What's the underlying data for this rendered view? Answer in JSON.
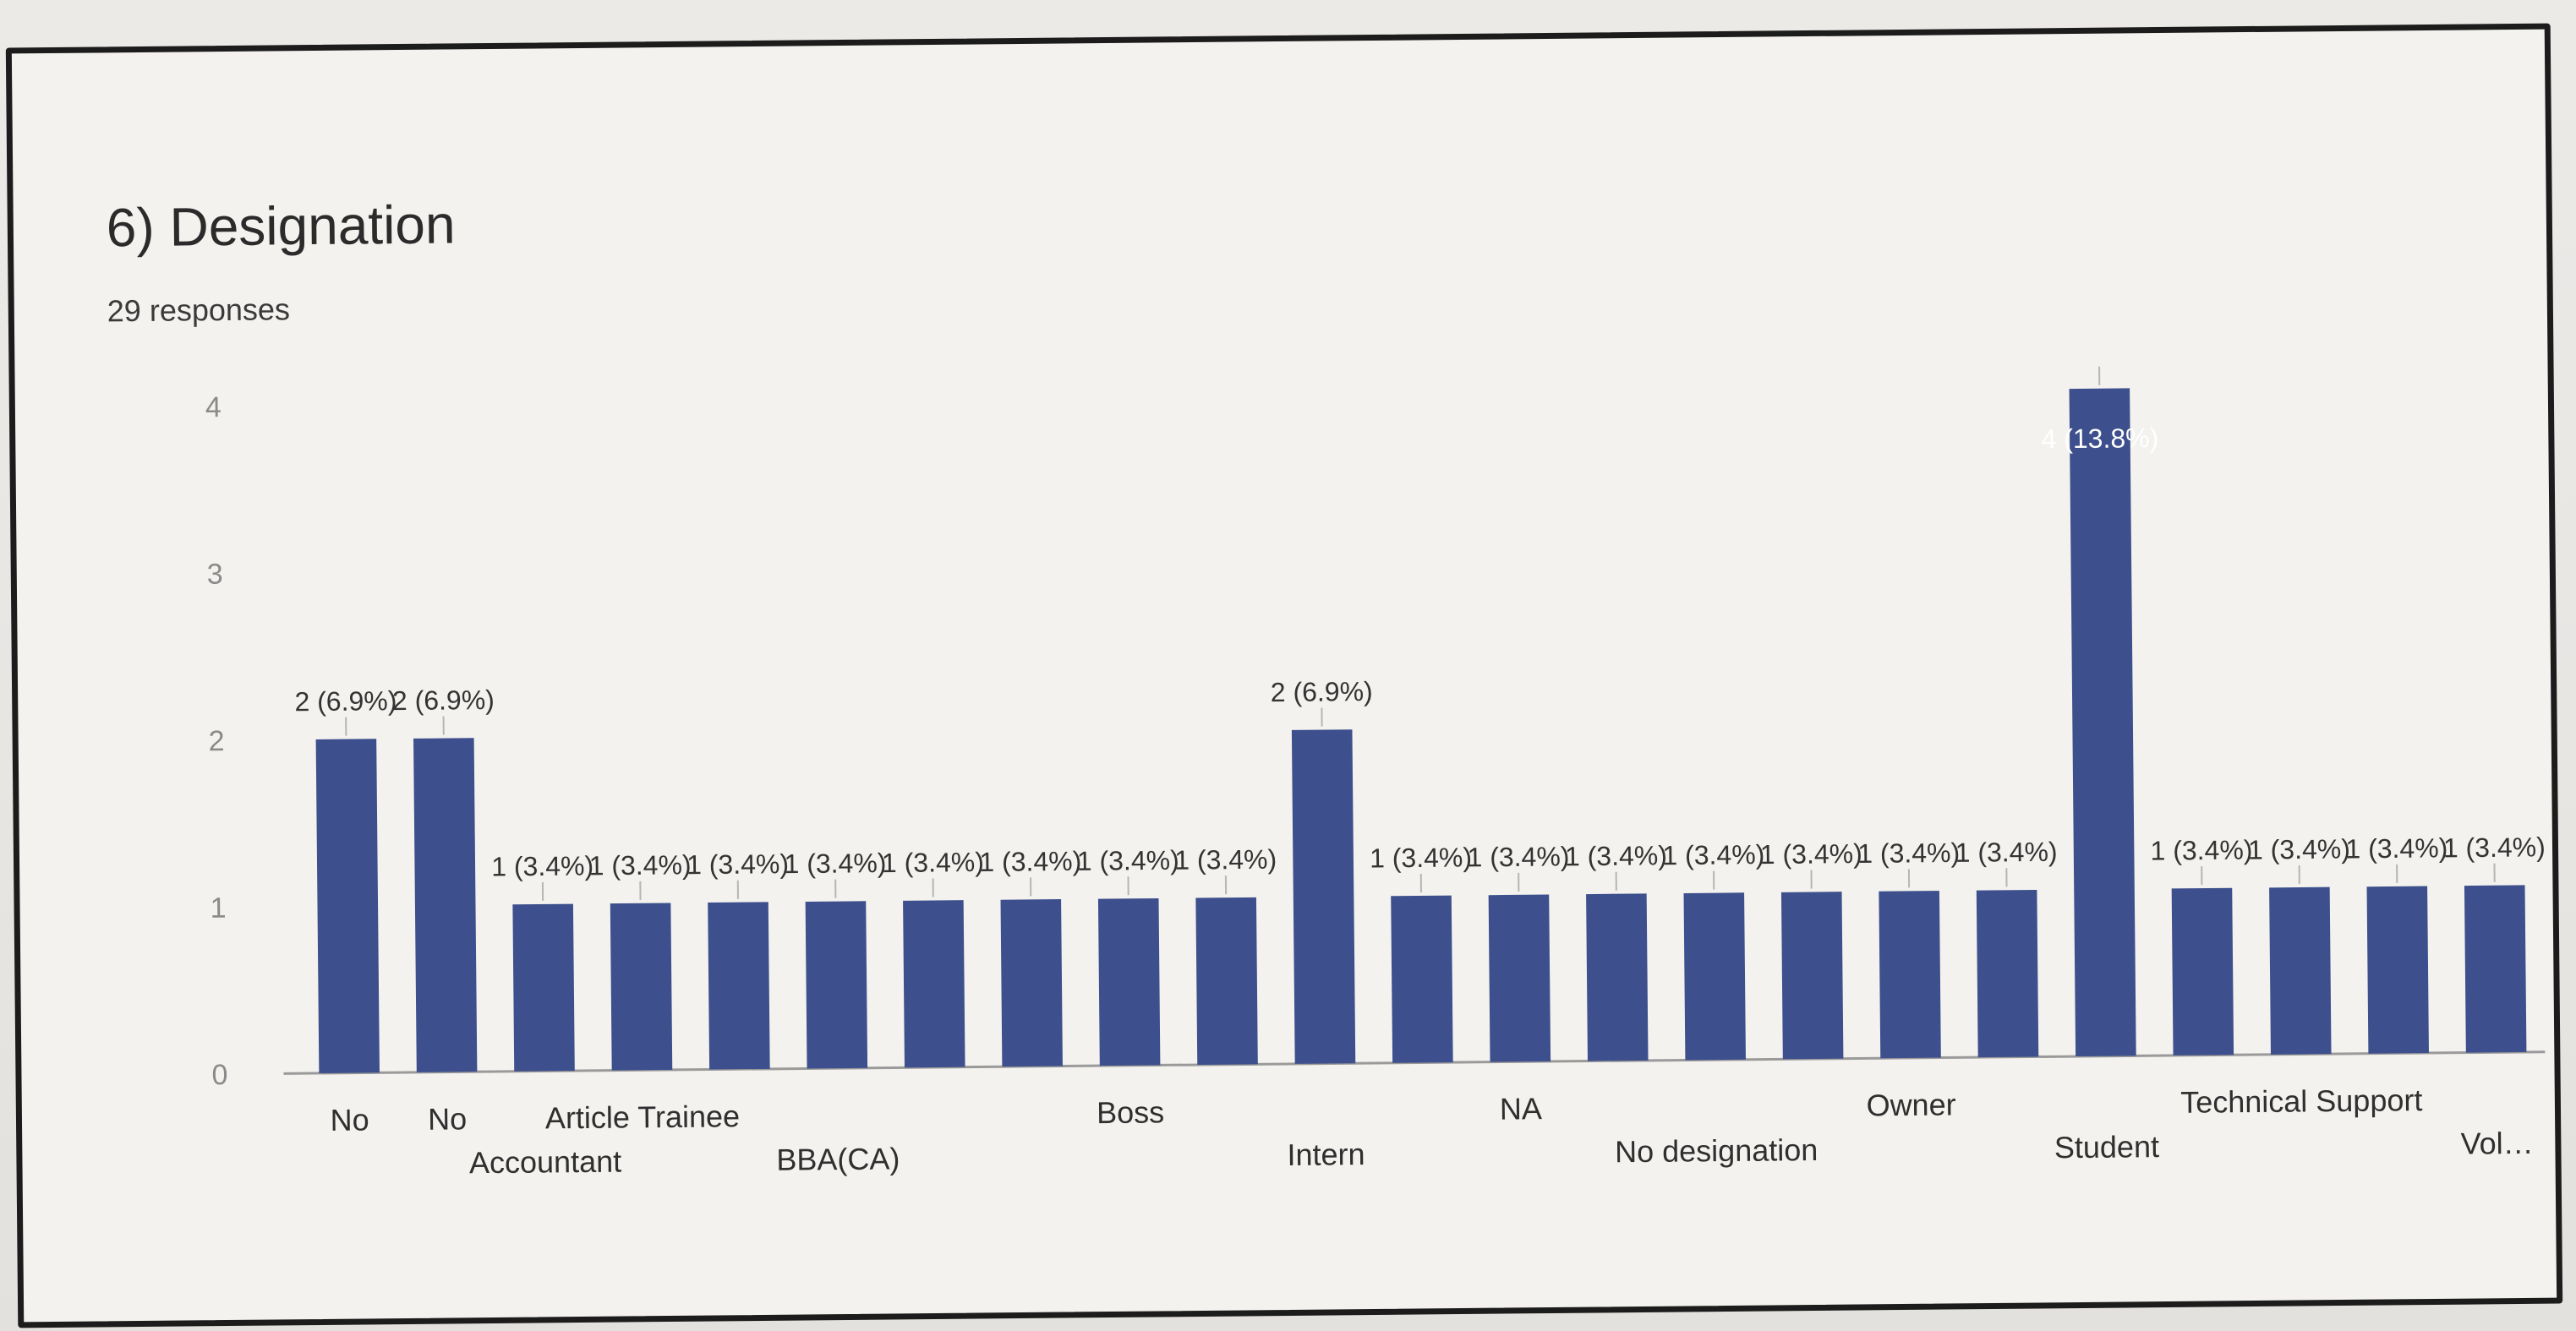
{
  "chart_data": {
    "type": "bar",
    "title": "6) Designation",
    "subtitle": "29 responses",
    "xlabel": "",
    "ylabel": "",
    "ylim": [
      0,
      4
    ],
    "yticks": [
      "0",
      "1",
      "2",
      "3",
      "4"
    ],
    "grid": false,
    "bar_color": "#3d4f8c",
    "bars": [
      {
        "label": "No",
        "value": 2,
        "data_label": "2 (6.9%)"
      },
      {
        "label": "No",
        "value": 2,
        "data_label": "2 (6.9%)"
      },
      {
        "label": "Accountant",
        "value": 1,
        "data_label": "1 (3.4%)"
      },
      {
        "label": "Article Trainee",
        "value": 1,
        "data_label": "1 (3.4%)"
      },
      {
        "label": "",
        "value": 1,
        "data_label": "1 (3.4%)"
      },
      {
        "label": "BBA(CA)",
        "value": 1,
        "data_label": "1 (3.4%)"
      },
      {
        "label": "",
        "value": 1,
        "data_label": "1 (3.4%)"
      },
      {
        "label": "",
        "value": 1,
        "data_label": "1 (3.4%)"
      },
      {
        "label": "Boss",
        "value": 1,
        "data_label": "1 (3.4%)"
      },
      {
        "label": "",
        "value": 1,
        "data_label": "1 (3.4%)"
      },
      {
        "label": "Intern",
        "value": 2,
        "data_label": "2 (6.9%)"
      },
      {
        "label": "",
        "value": 1,
        "data_label": "1 (3.4%)"
      },
      {
        "label": "NA",
        "value": 1,
        "data_label": "1 (3.4%)"
      },
      {
        "label": "",
        "value": 1,
        "data_label": "1 (3.4%)"
      },
      {
        "label": "No designation",
        "value": 1,
        "data_label": "1 (3.4%)"
      },
      {
        "label": "",
        "value": 1,
        "data_label": "1 (3.4%)"
      },
      {
        "label": "Owner",
        "value": 1,
        "data_label": "1 (3.4%)"
      },
      {
        "label": "",
        "value": 1,
        "data_label": "1 (3.4%)"
      },
      {
        "label": "Student",
        "value": 4,
        "data_label": "4 (13.8%)"
      },
      {
        "label": "",
        "value": 1,
        "data_label": "1 (3.4%)"
      },
      {
        "label": "Technical Support",
        "value": 1,
        "data_label": "1 (3.4%)"
      },
      {
        "label": "",
        "value": 1,
        "data_label": "1 (3.4%)"
      },
      {
        "label": "Vol…",
        "value": 1,
        "data_label": "1 (3.4%)"
      }
    ]
  }
}
